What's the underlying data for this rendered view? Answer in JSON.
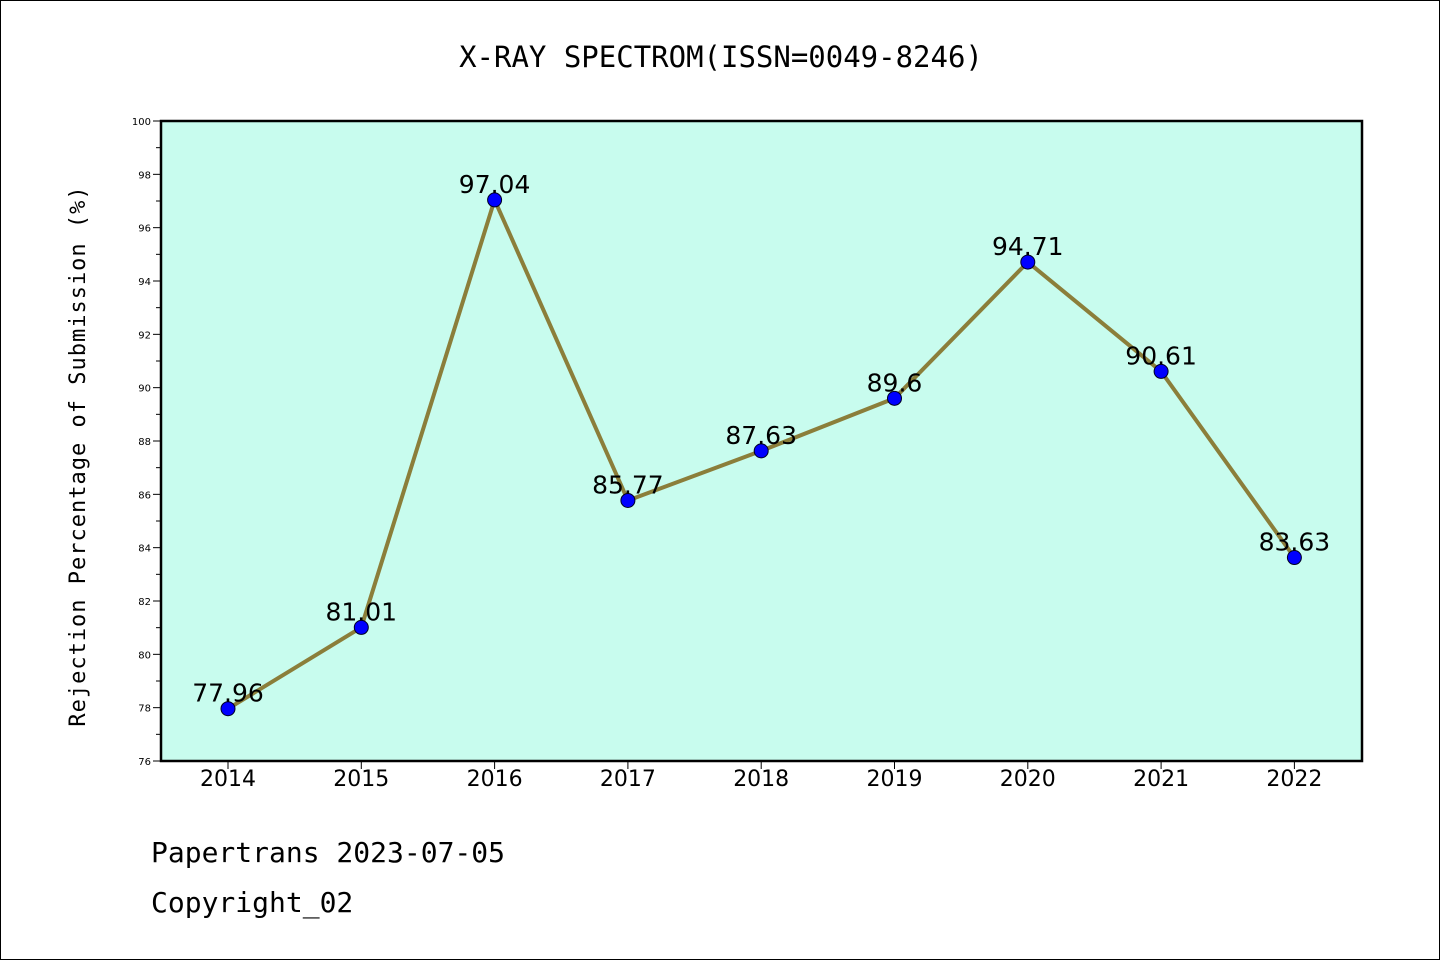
{
  "chart_data": {
    "type": "line",
    "title": "X-RAY SPECTROM(ISSN=0049-8246)",
    "xlabel": "",
    "ylabel": "Rejection Percentage of Submission (%)",
    "categories": [
      "2014",
      "2015",
      "2016",
      "2017",
      "2018",
      "2019",
      "2020",
      "2021",
      "2022"
    ],
    "values": [
      77.96,
      81.01,
      97.04,
      85.77,
      87.63,
      89.6,
      94.71,
      90.61,
      83.63
    ],
    "data_labels": [
      "77.96",
      "81.01",
      "97.04",
      "85.77",
      "87.63",
      "89.6",
      "94.71",
      "90.61",
      "83.63"
    ],
    "ylim": [
      76,
      100
    ],
    "yticks": [
      76,
      78,
      80,
      82,
      84,
      86,
      88,
      90,
      92,
      94,
      96,
      98,
      100
    ],
    "grid": false,
    "legend": "none",
    "colors": {
      "plot_background": "#c8fcee",
      "line": "#8b7e3a",
      "marker": "#0000ff"
    }
  },
  "footer": {
    "source": "Papertrans 2023-07-05",
    "copyright": "Copyright_02"
  }
}
